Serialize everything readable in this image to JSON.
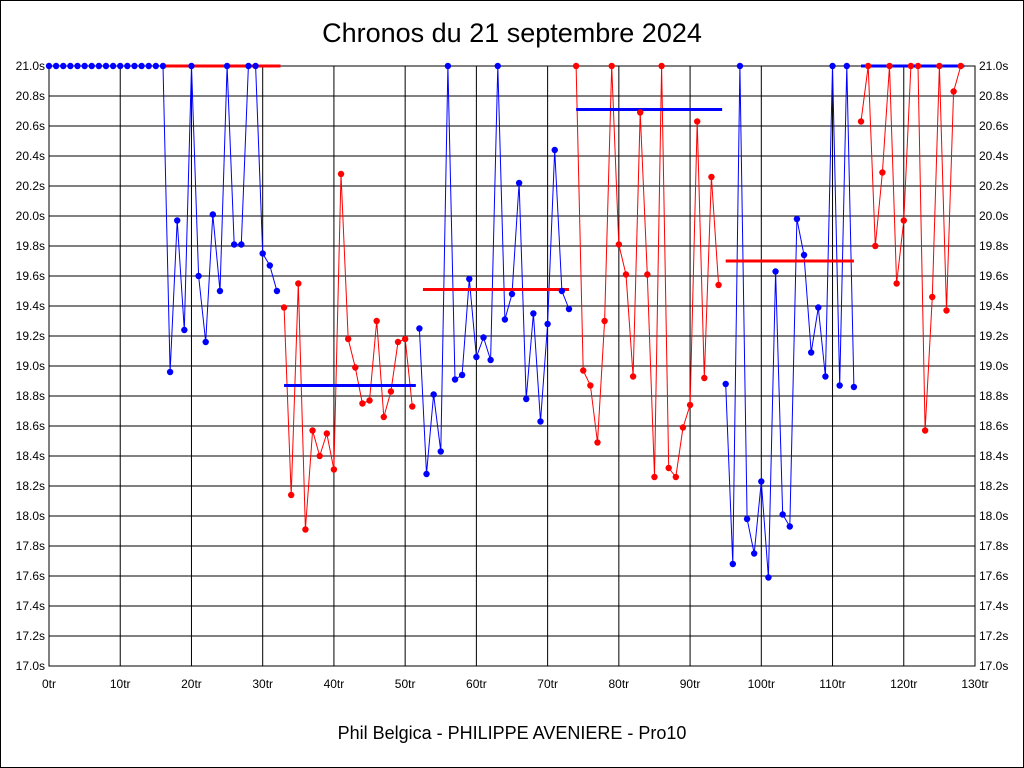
{
  "chart_data": {
    "type": "line",
    "title": "Chronos du 21 septembre 2024",
    "footer": "Phil Belgica - PHILIPPE AVENIERE - Pro10",
    "xlabel": "",
    "ylabel": "",
    "xlim": [
      0,
      130
    ],
    "ylim": [
      17.0,
      21.0
    ],
    "x_ticks": [
      0,
      10,
      20,
      30,
      40,
      50,
      60,
      70,
      80,
      90,
      100,
      110,
      120,
      130
    ],
    "x_tick_labels": [
      "0tr",
      "10tr",
      "20tr",
      "30tr",
      "40tr",
      "50tr",
      "60tr",
      "70tr",
      "80tr",
      "90tr",
      "100tr",
      "110tr",
      "120tr",
      "130tr"
    ],
    "y_ticks": [
      17.0,
      17.2,
      17.4,
      17.6,
      17.8,
      18.0,
      18.2,
      18.4,
      18.6,
      18.8,
      19.0,
      19.2,
      19.4,
      19.6,
      19.8,
      20.0,
      20.2,
      20.4,
      20.6,
      20.8,
      21.0
    ],
    "y_tick_labels": [
      "17.0s",
      "17.2s",
      "17.4s",
      "17.6s",
      "17.8s",
      "18.0s",
      "18.2s",
      "18.4s",
      "18.6s",
      "18.8s",
      "19.0s",
      "19.2s",
      "19.4s",
      "19.6s",
      "19.8s",
      "20.0s",
      "20.2s",
      "20.4s",
      "20.6s",
      "20.8s",
      "21.0s"
    ],
    "grid": true,
    "colors": {
      "blue": "#0000ff",
      "red": "#ff0000"
    },
    "series": [
      {
        "color": "blue",
        "points": [
          [
            0,
            21.0
          ],
          [
            1,
            21.0
          ],
          [
            2,
            21.0
          ],
          [
            3,
            21.0
          ],
          [
            4,
            21.0
          ],
          [
            5,
            21.0
          ],
          [
            6,
            21.0
          ],
          [
            7,
            21.0
          ],
          [
            8,
            21.0
          ],
          [
            9,
            21.0
          ],
          [
            10,
            21.0
          ],
          [
            11,
            21.0
          ],
          [
            12,
            21.0
          ],
          [
            13,
            21.0
          ],
          [
            14,
            21.0
          ],
          [
            15,
            21.0
          ],
          [
            16,
            21.0
          ],
          [
            17,
            18.96
          ],
          [
            18,
            19.97
          ],
          [
            19,
            19.24
          ],
          [
            20,
            21.0
          ],
          [
            21,
            19.6
          ],
          [
            22,
            19.16
          ],
          [
            23,
            20.01
          ],
          [
            24,
            19.5
          ],
          [
            25,
            21.0
          ],
          [
            26,
            19.81
          ],
          [
            27,
            19.81
          ],
          [
            28,
            21.0
          ],
          [
            29,
            21.0
          ],
          [
            30,
            19.75
          ],
          [
            31,
            19.67
          ],
          [
            32,
            19.5
          ]
        ]
      },
      {
        "color": "red",
        "points": [
          [
            33,
            19.39
          ],
          [
            34,
            18.14
          ],
          [
            35,
            19.55
          ],
          [
            36,
            17.91
          ],
          [
            37,
            18.57
          ],
          [
            38,
            18.4
          ],
          [
            39,
            18.55
          ],
          [
            40,
            18.31
          ],
          [
            41,
            20.28
          ],
          [
            42,
            19.18
          ],
          [
            43,
            18.99
          ],
          [
            44,
            18.75
          ],
          [
            45,
            18.77
          ],
          [
            46,
            19.3
          ],
          [
            47,
            18.66
          ],
          [
            48,
            18.83
          ],
          [
            49,
            19.16
          ],
          [
            50,
            19.18
          ],
          [
            51,
            18.73
          ]
        ]
      },
      {
        "color": "blue",
        "points": [
          [
            52,
            19.25
          ],
          [
            53,
            18.28
          ],
          [
            54,
            18.81
          ],
          [
            55,
            18.43
          ],
          [
            56,
            21.0
          ],
          [
            57,
            18.91
          ],
          [
            58,
            18.94
          ],
          [
            59,
            19.58
          ],
          [
            60,
            19.06
          ],
          [
            61,
            19.19
          ],
          [
            62,
            19.04
          ],
          [
            63,
            21.0
          ],
          [
            64,
            19.31
          ],
          [
            65,
            19.48
          ],
          [
            66,
            20.22
          ],
          [
            67,
            18.78
          ],
          [
            68,
            19.35
          ],
          [
            69,
            18.63
          ],
          [
            70,
            19.28
          ],
          [
            71,
            20.44
          ],
          [
            72,
            19.5
          ],
          [
            73,
            19.38
          ]
        ]
      },
      {
        "color": "red",
        "points": [
          [
            74,
            21.0
          ],
          [
            75,
            18.97
          ],
          [
            76,
            18.87
          ],
          [
            77,
            18.49
          ],
          [
            78,
            19.3
          ],
          [
            79,
            21.0
          ],
          [
            80,
            19.81
          ],
          [
            81,
            19.61
          ],
          [
            82,
            18.93
          ],
          [
            83,
            20.69
          ],
          [
            84,
            19.61
          ],
          [
            85,
            18.26
          ],
          [
            86,
            21.0
          ],
          [
            87,
            18.32
          ],
          [
            88,
            18.26
          ],
          [
            89,
            18.59
          ],
          [
            90,
            18.74
          ],
          [
            91,
            20.63
          ],
          [
            92,
            18.92
          ],
          [
            93,
            20.26
          ],
          [
            94,
            19.54
          ]
        ]
      },
      {
        "color": "blue",
        "points": [
          [
            95,
            18.88
          ],
          [
            96,
            17.68
          ],
          [
            97,
            21.0
          ],
          [
            98,
            17.98
          ],
          [
            99,
            17.75
          ],
          [
            100,
            18.23
          ],
          [
            101,
            17.59
          ],
          [
            102,
            19.63
          ],
          [
            103,
            18.01
          ],
          [
            104,
            17.93
          ],
          [
            105,
            19.98
          ],
          [
            106,
            19.74
          ],
          [
            107,
            19.09
          ],
          [
            108,
            19.39
          ],
          [
            109,
            18.93
          ],
          [
            110,
            21.0
          ],
          [
            111,
            18.87
          ],
          [
            112,
            21.0
          ],
          [
            113,
            18.86
          ]
        ]
      },
      {
        "color": "red",
        "points": [
          [
            114,
            20.63
          ],
          [
            115,
            21.0
          ],
          [
            116,
            19.8
          ],
          [
            117,
            20.29
          ],
          [
            118,
            21.0
          ],
          [
            119,
            19.55
          ],
          [
            120,
            19.97
          ],
          [
            121,
            21.0
          ],
          [
            122,
            21.0
          ],
          [
            123,
            18.57
          ],
          [
            124,
            19.46
          ],
          [
            125,
            21.0
          ],
          [
            126,
            19.37
          ],
          [
            127,
            20.83
          ],
          [
            128,
            21.0
          ]
        ]
      }
    ],
    "averages": [
      {
        "color": "red",
        "x": [
          16,
          32.5
        ],
        "y": 21.0
      },
      {
        "color": "blue",
        "x": [
          33,
          51.5
        ],
        "y": 18.87
      },
      {
        "color": "red",
        "x": [
          52.5,
          73
        ],
        "y": 19.51
      },
      {
        "color": "blue",
        "x": [
          74,
          94.5
        ],
        "y": 20.71
      },
      {
        "color": "red",
        "x": [
          95,
          113
        ],
        "y": 19.7
      },
      {
        "color": "blue",
        "x": [
          114,
          128.5
        ],
        "y": 21.0
      }
    ]
  }
}
